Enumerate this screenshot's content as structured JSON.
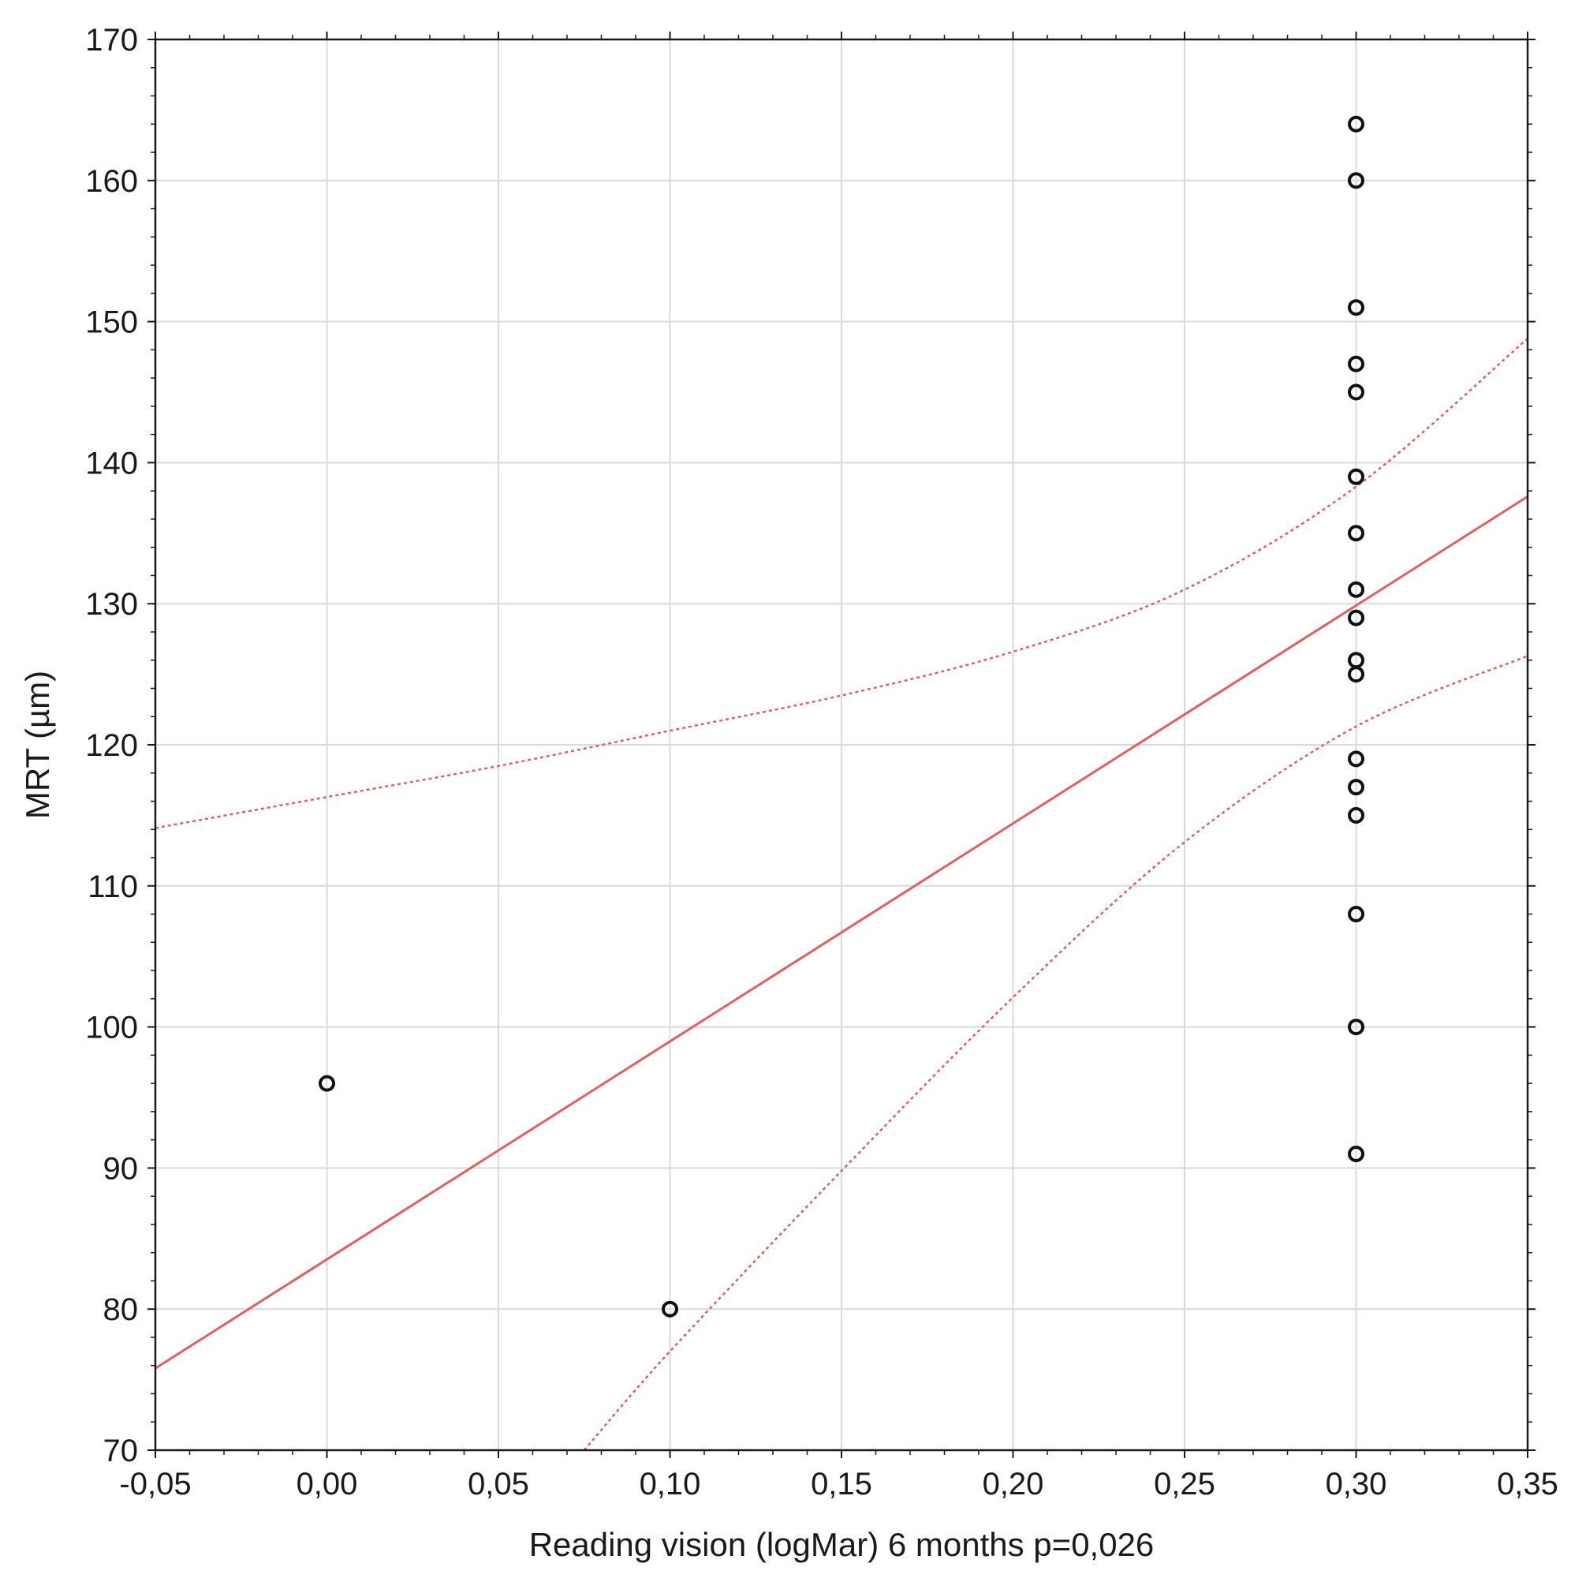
{
  "chart_data": {
    "type": "scatter",
    "title": "",
    "xlabel": "Reading vision (logMar)  6 months  p=0,026",
    "ylabel": "MRT (µm)",
    "xlim": [
      -0.05,
      0.35
    ],
    "ylim": [
      70,
      170
    ],
    "x_ticks": [
      -0.05,
      0.0,
      0.05,
      0.1,
      0.15,
      0.2,
      0.25,
      0.3,
      0.35
    ],
    "x_tick_labels": [
      "-0,05",
      "0,00",
      "0,05",
      "0,10",
      "0,15",
      "0,20",
      "0,25",
      "0,30",
      "0,35"
    ],
    "y_ticks": [
      70,
      80,
      90,
      100,
      110,
      120,
      130,
      140,
      150,
      160,
      170
    ],
    "y_tick_labels": [
      "70",
      "80",
      "90",
      "100",
      "110",
      "120",
      "130",
      "140",
      "150",
      "160",
      "170"
    ],
    "grid": true,
    "points": [
      {
        "x": 0.0,
        "y": 96
      },
      {
        "x": 0.1,
        "y": 80
      },
      {
        "x": 0.3,
        "y": 164
      },
      {
        "x": 0.3,
        "y": 160
      },
      {
        "x": 0.3,
        "y": 151
      },
      {
        "x": 0.3,
        "y": 147
      },
      {
        "x": 0.3,
        "y": 145
      },
      {
        "x": 0.3,
        "y": 139
      },
      {
        "x": 0.3,
        "y": 135
      },
      {
        "x": 0.3,
        "y": 131
      },
      {
        "x": 0.3,
        "y": 129
      },
      {
        "x": 0.3,
        "y": 126
      },
      {
        "x": 0.3,
        "y": 125
      },
      {
        "x": 0.3,
        "y": 119
      },
      {
        "x": 0.3,
        "y": 117
      },
      {
        "x": 0.3,
        "y": 115
      },
      {
        "x": 0.3,
        "y": 108
      },
      {
        "x": 0.3,
        "y": 100
      },
      {
        "x": 0.3,
        "y": 91
      }
    ],
    "regression_line": {
      "color": "#e06060",
      "points": [
        {
          "x": -0.05,
          "y": 75.8
        },
        {
          "x": 0.35,
          "y": 137.6
        }
      ]
    },
    "confidence_bands": {
      "color": "#e06060",
      "style": "dotted",
      "upper": [
        {
          "x": -0.05,
          "y": 114.1
        },
        {
          "x": 0.0,
          "y": 116.3
        },
        {
          "x": 0.05,
          "y": 118.5
        },
        {
          "x": 0.1,
          "y": 121.0
        },
        {
          "x": 0.15,
          "y": 123.5
        },
        {
          "x": 0.2,
          "y": 126.6
        },
        {
          "x": 0.25,
          "y": 131.0
        },
        {
          "x": 0.3,
          "y": 138.3
        },
        {
          "x": 0.35,
          "y": 148.8
        }
      ],
      "lower": [
        {
          "x": 0.075,
          "y": 70.0
        },
        {
          "x": 0.1,
          "y": 77.0
        },
        {
          "x": 0.15,
          "y": 89.8
        },
        {
          "x": 0.2,
          "y": 102.1
        },
        {
          "x": 0.25,
          "y": 113.1
        },
        {
          "x": 0.3,
          "y": 121.3
        },
        {
          "x": 0.35,
          "y": 126.3
        }
      ]
    },
    "marker_color": "#111111",
    "axis_color": "#1a1a1a",
    "grid_color": "#d9d9d9"
  }
}
